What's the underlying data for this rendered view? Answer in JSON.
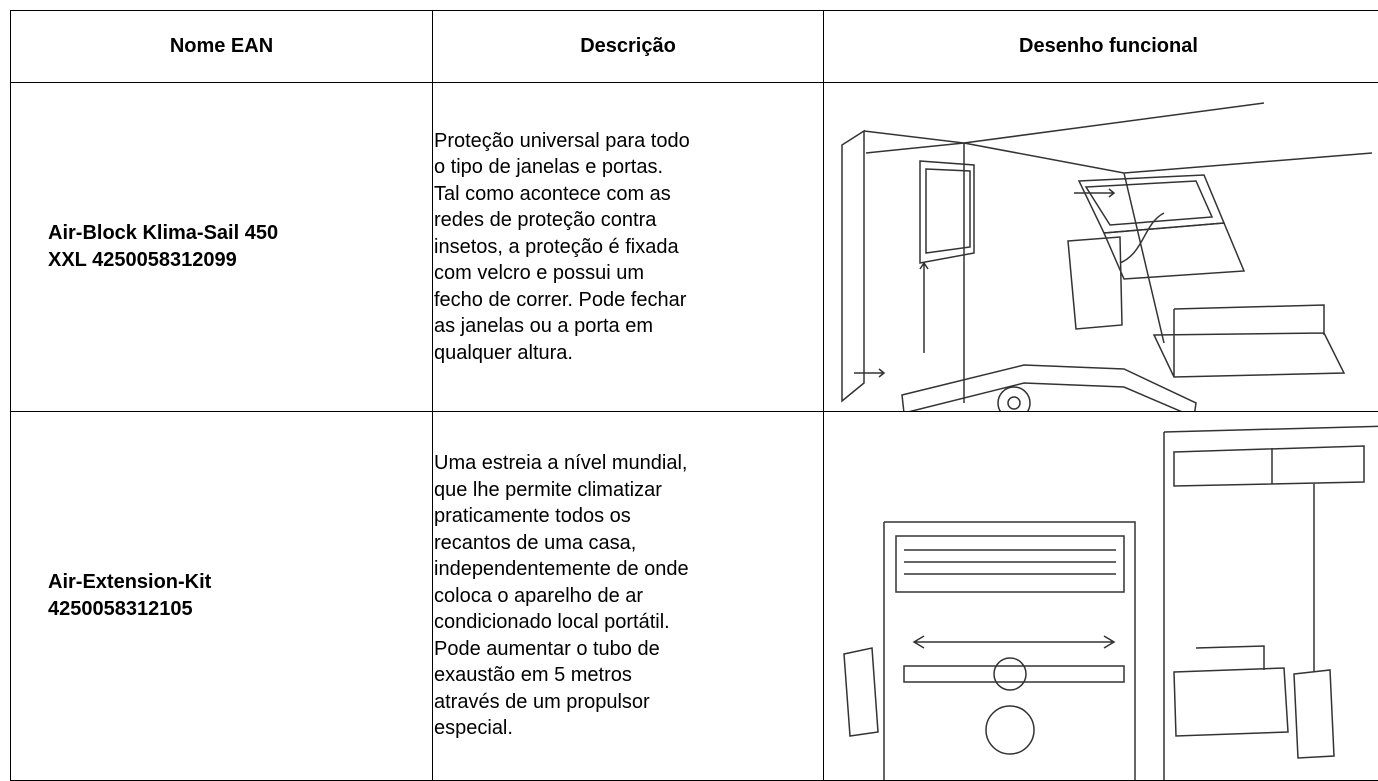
{
  "table": {
    "headers": [
      "Nome EAN",
      "Descrição",
      "Desenho funcional"
    ],
    "rows": [
      {
        "name": [
          "Air-Block Klima-Sail 450",
          "XXL 4250058312099"
        ],
        "description": [
          "Proteção universal para todo",
          "o tipo de janelas e portas.",
          "Tal como acontece com as",
          "redes de proteção contra",
          "insetos, a proteção é fixada",
          "com velcro e possui um",
          "fecho de correr. Pode fechar",
          "as janelas ou a porta em",
          "qualquer altura."
        ]
      },
      {
        "name": [
          "Air-Extension-Kit",
          "4250058312105"
        ],
        "description": [
          "Uma estreia a nível mundial,",
          "que lhe permite climatizar",
          "praticamente todos os",
          "recantos de uma casa,",
          "independentemente de onde",
          "coloca o aparelho de ar",
          "condicionado local portátil.",
          "Pode aumentar o tubo de",
          "exaustão em 5 metros",
          "através de um propulsor",
          "especial."
        ]
      }
    ]
  }
}
